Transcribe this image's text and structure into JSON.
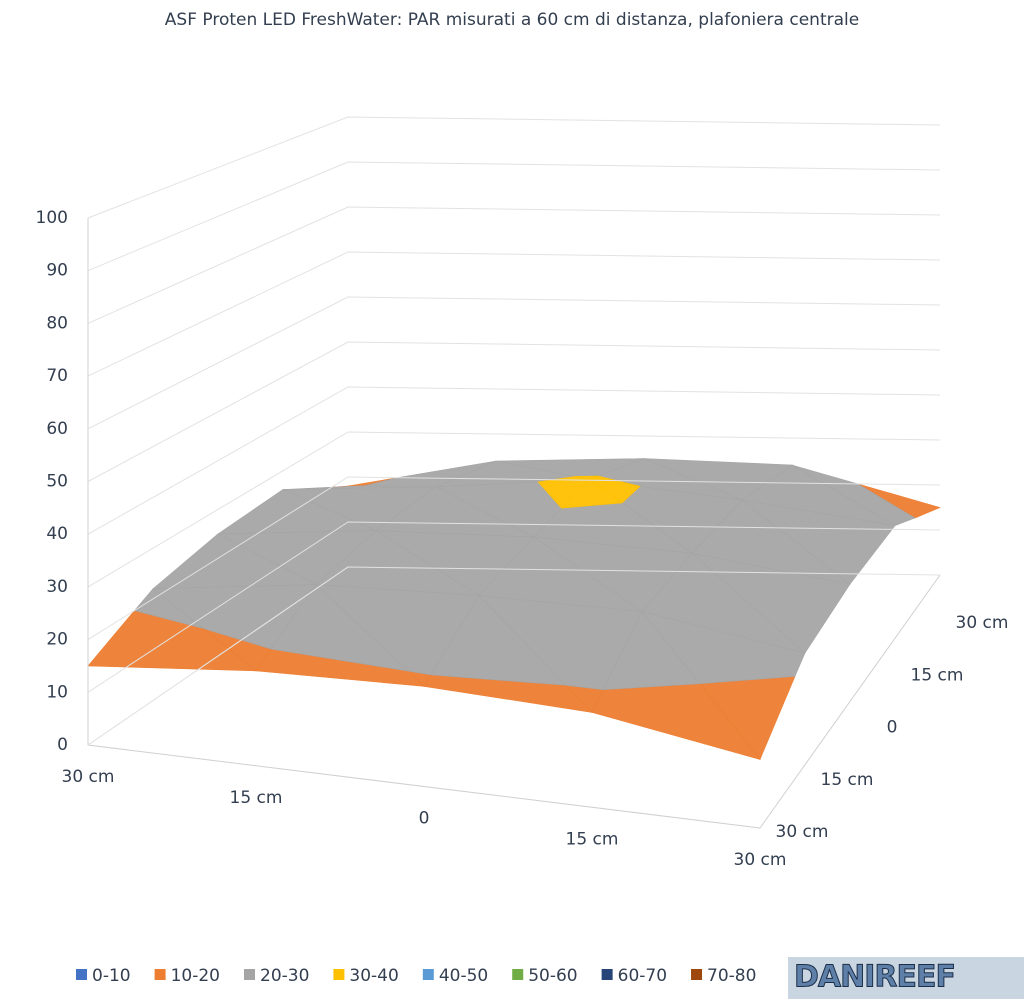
{
  "chart_data": {
    "type": "surface",
    "title": "ASF Proten LED FreshWater: PAR misurati a 60 cm di distanza, plafoniera centrale",
    "categories": [
      "30 cm",
      "15 cm",
      "0",
      "15 cm",
      "30 cm"
    ],
    "depth_categories": [
      "30 cm",
      "15 cm",
      "0",
      "15 cm",
      "30 cm"
    ],
    "values": [
      [
        15,
        18,
        19,
        18,
        13
      ],
      [
        22,
        26,
        27,
        27,
        22
      ],
      [
        25,
        28,
        29,
        28,
        24
      ],
      [
        26,
        28,
        31,
        28,
        24
      ],
      [
        18,
        24,
        25,
        24,
        15
      ]
    ],
    "zlim": [
      0,
      100
    ],
    "zticks": [
      0,
      10,
      20,
      30,
      40,
      50,
      60,
      70,
      80,
      90,
      100
    ],
    "grid": true,
    "legend": [
      {
        "label": "0-10",
        "color": "#4472c4"
      },
      {
        "label": "10-20",
        "color": "#ed7d31"
      },
      {
        "label": "20-30",
        "color": "#a5a5a5"
      },
      {
        "label": "30-40",
        "color": "#ffc000"
      },
      {
        "label": "40-50",
        "color": "#5b9bd5"
      },
      {
        "label": "50-60",
        "color": "#70ad47"
      },
      {
        "label": "60-70",
        "color": "#264478"
      },
      {
        "label": "70-80",
        "color": "#9e480e"
      }
    ],
    "watermark": "DANIREEF"
  }
}
